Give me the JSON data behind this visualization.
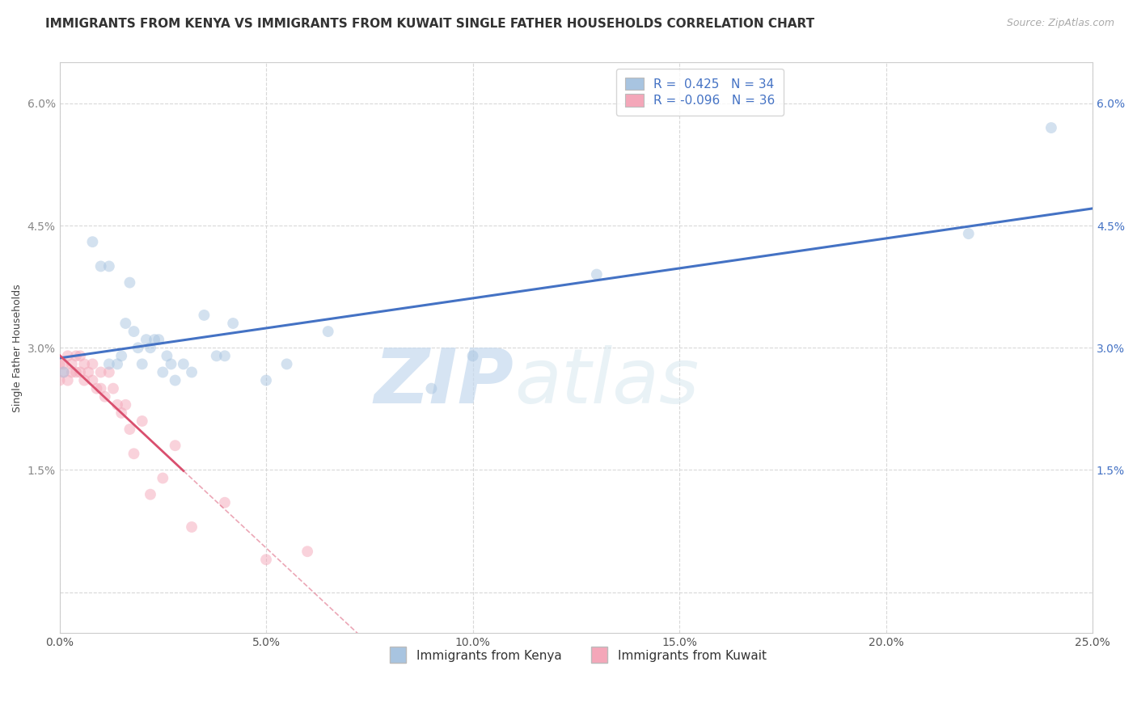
{
  "title": "IMMIGRANTS FROM KENYA VS IMMIGRANTS FROM KUWAIT SINGLE FATHER HOUSEHOLDS CORRELATION CHART",
  "source": "Source: ZipAtlas.com",
  "ylabel": "Single Father Households",
  "xlabel": "",
  "xlim": [
    0.0,
    0.25
  ],
  "ylim": [
    -0.005,
    0.065
  ],
  "xticks": [
    0.0,
    0.05,
    0.1,
    0.15,
    0.2,
    0.25
  ],
  "xtick_labels": [
    "0.0%",
    "5.0%",
    "10.0%",
    "15.0%",
    "20.0%",
    "25.0%"
  ],
  "yticks": [
    0.0,
    0.015,
    0.03,
    0.045,
    0.06
  ],
  "ytick_labels_left": [
    "",
    "1.5%",
    "3.0%",
    "4.5%",
    "6.0%"
  ],
  "ytick_labels_right": [
    "",
    "1.5%",
    "3.0%",
    "4.5%",
    "6.0%"
  ],
  "kenya_color": "#a8c4e0",
  "kuwait_color": "#f4a7b9",
  "kenya_line_color": "#4472c4",
  "kuwait_line_color": "#d94f6e",
  "kenya_R": 0.425,
  "kenya_N": 34,
  "kuwait_R": -0.096,
  "kuwait_N": 36,
  "watermark_zip": "ZIP",
  "watermark_atlas": "atlas",
  "background_color": "#ffffff",
  "grid_color": "#d8d8d8",
  "kenya_scatter_x": [
    0.001,
    0.008,
    0.01,
    0.012,
    0.012,
    0.014,
    0.015,
    0.016,
    0.017,
    0.018,
    0.019,
    0.02,
    0.021,
    0.022,
    0.023,
    0.024,
    0.025,
    0.026,
    0.027,
    0.028,
    0.03,
    0.032,
    0.035,
    0.038,
    0.04,
    0.042,
    0.05,
    0.055,
    0.065,
    0.09,
    0.1,
    0.13,
    0.22,
    0.24
  ],
  "kenya_scatter_y": [
    0.027,
    0.043,
    0.04,
    0.028,
    0.04,
    0.028,
    0.029,
    0.033,
    0.038,
    0.032,
    0.03,
    0.028,
    0.031,
    0.03,
    0.031,
    0.031,
    0.027,
    0.029,
    0.028,
    0.026,
    0.028,
    0.027,
    0.034,
    0.029,
    0.029,
    0.033,
    0.026,
    0.028,
    0.032,
    0.025,
    0.029,
    0.039,
    0.044,
    0.057
  ],
  "kuwait_scatter_x": [
    0.0,
    0.0,
    0.001,
    0.001,
    0.002,
    0.002,
    0.003,
    0.003,
    0.004,
    0.004,
    0.005,
    0.005,
    0.006,
    0.006,
    0.007,
    0.008,
    0.008,
    0.009,
    0.01,
    0.01,
    0.011,
    0.012,
    0.013,
    0.014,
    0.015,
    0.016,
    0.017,
    0.018,
    0.02,
    0.022,
    0.025,
    0.028,
    0.032,
    0.04,
    0.05,
    0.06
  ],
  "kuwait_scatter_y": [
    0.026,
    0.028,
    0.027,
    0.028,
    0.026,
    0.029,
    0.027,
    0.028,
    0.027,
    0.029,
    0.027,
    0.029,
    0.026,
    0.028,
    0.027,
    0.026,
    0.028,
    0.025,
    0.025,
    0.027,
    0.024,
    0.027,
    0.025,
    0.023,
    0.022,
    0.023,
    0.02,
    0.017,
    0.021,
    0.012,
    0.014,
    0.018,
    0.008,
    0.011,
    0.004,
    0.005
  ],
  "legend_label_kenya": "Immigrants from Kenya",
  "legend_label_kuwait": "Immigrants from Kuwait",
  "title_fontsize": 11,
  "axis_label_fontsize": 9,
  "tick_fontsize": 10,
  "legend_fontsize": 11,
  "dot_size": 100,
  "dot_alpha": 0.5,
  "line_alpha": 1.0
}
